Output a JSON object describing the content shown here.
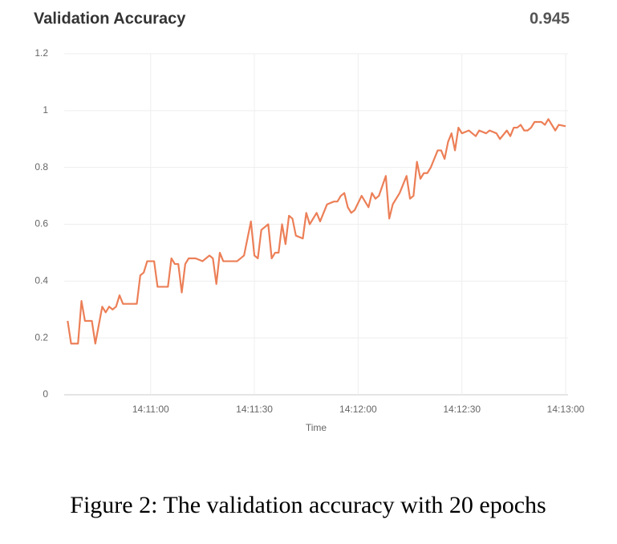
{
  "chart_data": {
    "type": "line",
    "title": "Validation Accuracy",
    "current_value": 0.945,
    "xlabel": "Time",
    "color": "#ec7f57",
    "grid": true,
    "x": [
      "14:10:36",
      "14:10:37",
      "14:10:39",
      "14:10:40",
      "14:10:41",
      "14:10:43",
      "14:10:44",
      "14:10:46",
      "14:10:47",
      "14:10:48",
      "14:10:49",
      "14:10:50",
      "14:10:51",
      "14:10:52",
      "14:10:53",
      "14:10:56",
      "14:10:57",
      "14:10:58",
      "14:10:59",
      "14:11:01",
      "14:11:02",
      "14:11:03",
      "14:11:05",
      "14:11:06",
      "14:11:07",
      "14:11:08",
      "14:11:09",
      "14:11:10",
      "14:11:11",
      "14:11:13",
      "14:11:15",
      "14:11:17",
      "14:11:18",
      "14:11:19",
      "14:11:20",
      "14:11:21",
      "14:11:25",
      "14:11:27",
      "14:11:29",
      "14:11:30",
      "14:11:31",
      "14:11:32",
      "14:11:34",
      "14:11:35",
      "14:11:36",
      "14:11:37",
      "14:11:38",
      "14:11:39",
      "14:11:40",
      "14:11:41",
      "14:11:42",
      "14:11:44",
      "14:11:45",
      "14:11:46",
      "14:11:48",
      "14:11:49",
      "14:11:51",
      "14:11:53",
      "14:11:54",
      "14:11:55",
      "14:11:56",
      "14:11:57",
      "14:11:58",
      "14:11:59",
      "14:12:01",
      "14:12:03",
      "14:12:04",
      "14:12:05",
      "14:12:06",
      "14:12:08",
      "14:12:09",
      "14:12:10",
      "14:12:12",
      "14:12:14",
      "14:12:15",
      "14:12:16",
      "14:12:17",
      "14:12:18",
      "14:12:19",
      "14:12:20",
      "14:12:21",
      "14:12:22",
      "14:12:23",
      "14:12:24",
      "14:12:25",
      "14:12:26",
      "14:12:27",
      "14:12:28",
      "14:12:29",
      "14:12:30",
      "14:12:32",
      "14:12:33",
      "14:12:34",
      "14:12:35",
      "14:12:37",
      "14:12:38",
      "14:12:40",
      "14:12:41",
      "14:12:43",
      "14:12:44",
      "14:12:45",
      "14:12:46",
      "14:12:47",
      "14:12:48",
      "14:12:49",
      "14:12:50",
      "14:12:51",
      "14:12:53",
      "14:12:54",
      "14:12:55",
      "14:12:57",
      "14:12:58",
      "14:13:00"
    ],
    "values": [
      0.26,
      0.18,
      0.18,
      0.33,
      0.26,
      0.26,
      0.18,
      0.31,
      0.29,
      0.31,
      0.3,
      0.31,
      0.35,
      0.32,
      0.32,
      0.32,
      0.42,
      0.43,
      0.47,
      0.47,
      0.38,
      0.38,
      0.38,
      0.48,
      0.46,
      0.46,
      0.36,
      0.46,
      0.48,
      0.48,
      0.47,
      0.49,
      0.48,
      0.39,
      0.5,
      0.47,
      0.47,
      0.49,
      0.61,
      0.49,
      0.48,
      0.58,
      0.6,
      0.48,
      0.5,
      0.5,
      0.6,
      0.53,
      0.63,
      0.62,
      0.56,
      0.55,
      0.64,
      0.6,
      0.64,
      0.61,
      0.67,
      0.68,
      0.68,
      0.7,
      0.71,
      0.66,
      0.64,
      0.65,
      0.7,
      0.66,
      0.71,
      0.69,
      0.7,
      0.77,
      0.62,
      0.67,
      0.71,
      0.77,
      0.69,
      0.7,
      0.82,
      0.76,
      0.78,
      0.78,
      0.8,
      0.83,
      0.86,
      0.86,
      0.83,
      0.89,
      0.92,
      0.86,
      0.94,
      0.92,
      0.93,
      0.92,
      0.91,
      0.93,
      0.92,
      0.93,
      0.92,
      0.9,
      0.93,
      0.91,
      0.94,
      0.94,
      0.95,
      0.93,
      0.93,
      0.94,
      0.96,
      0.96,
      0.95,
      0.97,
      0.93,
      0.95,
      0.945
    ],
    "xlim": [
      "14:10:35",
      "14:13:00"
    ],
    "xticks": [
      "14:11:00",
      "14:11:30",
      "14:12:00",
      "14:12:30",
      "14:13:00"
    ],
    "ylim": [
      0,
      1.2
    ],
    "yticks": [
      0,
      0.2,
      0.4,
      0.6,
      0.8,
      1,
      1.2
    ]
  },
  "caption": "Figure 2: The validation accuracy with 20 epochs"
}
